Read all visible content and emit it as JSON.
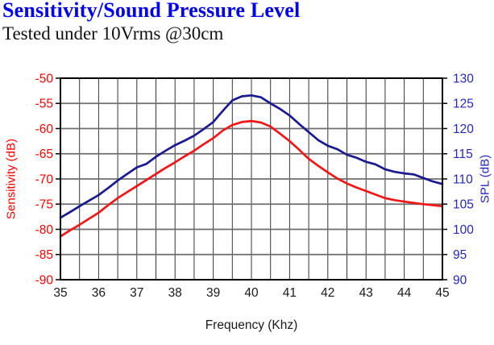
{
  "header": {
    "title": "Sensitivity/Sound Pressure Level",
    "subtitle": "Tested under 10Vrms @30cm"
  },
  "colors": {
    "title": "#0000f0",
    "subtitle": "#111111",
    "left_axis_text": "#ff0000",
    "right_axis_text": "#2626bb",
    "x_axis_text": "#1a1a1a",
    "spl_curve": "#1a1a90",
    "sensitivity_curve": "#f21616",
    "grid_minor": "#353535",
    "grid_major": "#6e6e6e",
    "border": "#000000"
  },
  "chart_data": {
    "type": "line",
    "title": "Sensitivity/Sound Pressure Level",
    "subtitle": "Tested under 10Vrms @30cm",
    "xlabel": "Frequency (Khz)",
    "ylabel_left": "Sensitivity (dB)",
    "ylabel_right": "SPL (dB)",
    "xlim": [
      35,
      45
    ],
    "ylim_left": [
      -90,
      -50
    ],
    "ylim_right": [
      90,
      130
    ],
    "x_ticks": [
      35,
      36,
      37,
      38,
      39,
      40,
      41,
      42,
      43,
      44,
      45
    ],
    "y_ticks_left": [
      -50,
      -55,
      -60,
      -65,
      -70,
      -75,
      -80,
      -85,
      -90
    ],
    "y_ticks_right": [
      130,
      125,
      120,
      115,
      110,
      105,
      100,
      95,
      90
    ],
    "x_minor_grid_step": 0.5,
    "y_major_grid_step": 5,
    "grid": true,
    "legend_position": "none",
    "x": [
      35,
      35.25,
      35.5,
      35.75,
      36,
      36.25,
      36.5,
      36.75,
      37,
      37.25,
      37.5,
      37.75,
      38,
      38.25,
      38.5,
      38.75,
      39,
      39.25,
      39.5,
      39.75,
      40,
      40.25,
      40.5,
      40.75,
      41,
      41.25,
      41.5,
      41.75,
      42,
      42.25,
      42.5,
      42.75,
      43,
      43.25,
      43.5,
      43.75,
      44,
      44.25,
      44.5,
      44.75,
      45
    ],
    "series": [
      {
        "name": "SPL (dB)",
        "axis": "right",
        "color": "#1a1a90",
        "values": [
          102.3,
          103.4,
          104.6,
          105.7,
          106.8,
          108.2,
          109.7,
          111.0,
          112.3,
          113.0,
          114.4,
          115.6,
          116.7,
          117.6,
          118.6,
          119.9,
          121.3,
          123.5,
          125.6,
          126.4,
          126.6,
          126.2,
          125.0,
          123.9,
          122.6,
          120.9,
          119.3,
          117.7,
          116.6,
          115.9,
          114.8,
          114.2,
          113.4,
          112.9,
          111.9,
          111.4,
          111.1,
          110.9,
          110.2,
          109.5,
          109.0
        ]
      },
      {
        "name": "Sensitivity (dB)",
        "axis": "left",
        "color": "#f21616",
        "values": [
          -81.4,
          -80.2,
          -79.1,
          -77.9,
          -76.7,
          -75.2,
          -73.8,
          -72.6,
          -71.4,
          -70.2,
          -69.0,
          -67.8,
          -66.7,
          -65.5,
          -64.4,
          -63.1,
          -61.9,
          -60.4,
          -59.3,
          -58.7,
          -58.5,
          -58.8,
          -59.6,
          -61.0,
          -62.5,
          -64.2,
          -66.0,
          -67.4,
          -68.7,
          -69.9,
          -70.9,
          -71.7,
          -72.4,
          -73.1,
          -73.8,
          -74.2,
          -74.5,
          -74.75,
          -75.0,
          -75.2,
          -75.4
        ]
      }
    ]
  }
}
